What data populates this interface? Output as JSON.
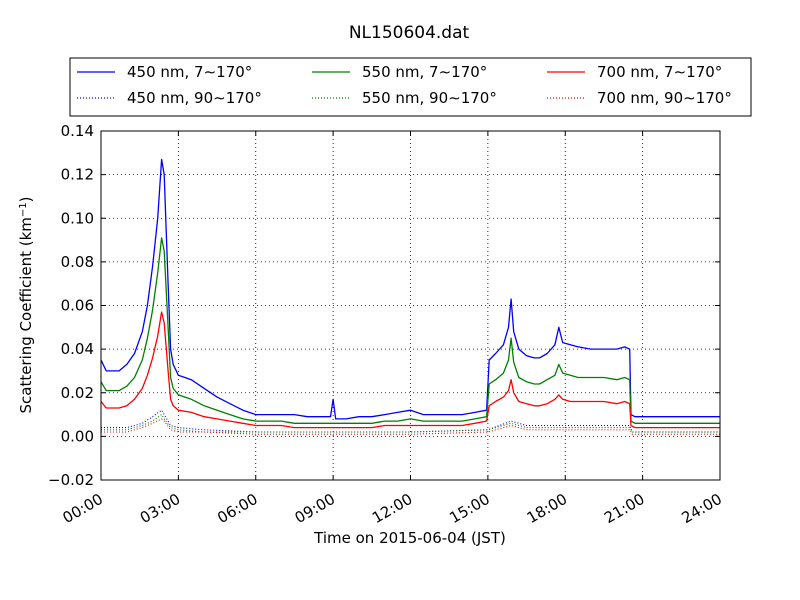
{
  "chart_data": {
    "type": "line",
    "title": "NL150604.dat",
    "xlabel": "Time on 2015-06-04 (JST)",
    "ylabel": "Scattering Coefficient (km",
    "ylabel_sup": "−1",
    "ylabel_close": ")",
    "xlim": [
      0,
      24
    ],
    "ylim": [
      -0.02,
      0.14
    ],
    "x_unit": "hours (JST)",
    "xticks": [
      0,
      3,
      6,
      9,
      12,
      15,
      18,
      21,
      24
    ],
    "xtick_labels": [
      "00:00",
      "03:00",
      "06:00",
      "09:00",
      "12:00",
      "15:00",
      "18:00",
      "21:00",
      "24:00"
    ],
    "yticks": [
      -0.02,
      0.0,
      0.02,
      0.04,
      0.06,
      0.08,
      0.1,
      0.12,
      0.14
    ],
    "ytick_labels": [
      "−0.02",
      "0.00",
      "0.02",
      "0.04",
      "0.06",
      "0.08",
      "0.10",
      "0.12",
      "0.14"
    ],
    "grid": true,
    "legend_position": "top (above plot, 3 columns)",
    "series": [
      {
        "name": "450 nm, 7∼170°",
        "color": "#0000ff",
        "style": "solid",
        "x": [
          0,
          0.2,
          0.7,
          1.0,
          1.3,
          1.6,
          1.8,
          2.0,
          2.2,
          2.35,
          2.45,
          2.6,
          2.7,
          2.8,
          3.0,
          3.5,
          4.0,
          4.5,
          5.0,
          5.5,
          6.0,
          6.5,
          7.0,
          7.5,
          8.0,
          8.5,
          8.9,
          9.0,
          9.1,
          9.5,
          10.0,
          10.5,
          11.0,
          11.5,
          12.0,
          12.5,
          13.0,
          13.5,
          14.0,
          14.5,
          14.95,
          15.05,
          15.3,
          15.6,
          15.8,
          15.9,
          16.0,
          16.2,
          16.5,
          16.8,
          17.0,
          17.3,
          17.6,
          17.75,
          17.9,
          18.2,
          18.5,
          19.0,
          19.5,
          20.0,
          20.3,
          20.5,
          20.55,
          20.7,
          21.0,
          21.5,
          22.0,
          22.5,
          23.0,
          23.5,
          24.0
        ],
        "y": [
          0.035,
          0.03,
          0.03,
          0.033,
          0.038,
          0.048,
          0.06,
          0.078,
          0.1,
          0.127,
          0.12,
          0.07,
          0.04,
          0.033,
          0.028,
          0.026,
          0.022,
          0.018,
          0.015,
          0.012,
          0.01,
          0.01,
          0.01,
          0.01,
          0.009,
          0.009,
          0.009,
          0.017,
          0.008,
          0.008,
          0.009,
          0.009,
          0.01,
          0.011,
          0.012,
          0.01,
          0.01,
          0.01,
          0.01,
          0.011,
          0.012,
          0.035,
          0.038,
          0.042,
          0.05,
          0.063,
          0.048,
          0.04,
          0.037,
          0.036,
          0.036,
          0.038,
          0.042,
          0.05,
          0.043,
          0.042,
          0.041,
          0.04,
          0.04,
          0.04,
          0.041,
          0.04,
          0.01,
          0.009,
          0.009,
          0.009,
          0.009,
          0.009,
          0.009,
          0.009,
          0.009
        ]
      },
      {
        "name": "550 nm, 7∼170°",
        "color": "#008000",
        "style": "solid",
        "x": [
          0,
          0.2,
          0.7,
          1.0,
          1.3,
          1.6,
          1.8,
          2.0,
          2.2,
          2.35,
          2.45,
          2.6,
          2.7,
          2.8,
          3.0,
          3.5,
          4.0,
          4.5,
          5.0,
          5.5,
          6.0,
          6.5,
          7.0,
          7.5,
          8.0,
          8.5,
          9.0,
          9.5,
          10.0,
          10.5,
          11.0,
          11.5,
          12.0,
          12.5,
          13.0,
          13.5,
          14.0,
          14.5,
          14.95,
          15.05,
          15.3,
          15.6,
          15.8,
          15.9,
          16.0,
          16.2,
          16.5,
          16.8,
          17.0,
          17.3,
          17.6,
          17.75,
          17.9,
          18.2,
          18.5,
          19.0,
          19.5,
          20.0,
          20.3,
          20.5,
          20.55,
          20.7,
          21.0,
          21.5,
          22.0,
          22.5,
          23.0,
          23.5,
          24.0
        ],
        "y": [
          0.025,
          0.021,
          0.021,
          0.023,
          0.027,
          0.035,
          0.045,
          0.058,
          0.075,
          0.091,
          0.085,
          0.05,
          0.027,
          0.022,
          0.019,
          0.017,
          0.014,
          0.012,
          0.01,
          0.008,
          0.007,
          0.007,
          0.007,
          0.006,
          0.006,
          0.006,
          0.006,
          0.006,
          0.006,
          0.006,
          0.007,
          0.007,
          0.008,
          0.007,
          0.007,
          0.007,
          0.007,
          0.008,
          0.009,
          0.024,
          0.026,
          0.029,
          0.035,
          0.045,
          0.034,
          0.027,
          0.025,
          0.024,
          0.024,
          0.026,
          0.028,
          0.033,
          0.029,
          0.028,
          0.027,
          0.027,
          0.027,
          0.026,
          0.027,
          0.026,
          0.007,
          0.006,
          0.006,
          0.006,
          0.006,
          0.006,
          0.006,
          0.006,
          0.006
        ]
      },
      {
        "name": "700 nm, 7∼170°",
        "color": "#ff0000",
        "style": "solid",
        "x": [
          0,
          0.2,
          0.7,
          1.0,
          1.3,
          1.6,
          1.8,
          2.0,
          2.2,
          2.35,
          2.45,
          2.6,
          2.7,
          2.8,
          3.0,
          3.5,
          4.0,
          4.5,
          5.0,
          5.5,
          6.0,
          6.5,
          7.0,
          7.5,
          8.0,
          8.5,
          9.0,
          9.5,
          10.0,
          10.5,
          11.0,
          11.5,
          12.0,
          12.5,
          13.0,
          13.5,
          14.0,
          14.5,
          14.95,
          15.05,
          15.3,
          15.6,
          15.8,
          15.9,
          16.0,
          16.2,
          16.5,
          16.8,
          17.0,
          17.3,
          17.6,
          17.75,
          17.9,
          18.2,
          18.5,
          19.0,
          19.5,
          20.0,
          20.3,
          20.5,
          20.55,
          20.7,
          21.0,
          21.5,
          22.0,
          22.5,
          23.0,
          23.5,
          24.0
        ],
        "y": [
          0.016,
          0.013,
          0.013,
          0.014,
          0.017,
          0.022,
          0.028,
          0.036,
          0.046,
          0.057,
          0.052,
          0.03,
          0.017,
          0.014,
          0.012,
          0.011,
          0.009,
          0.008,
          0.007,
          0.006,
          0.005,
          0.005,
          0.005,
          0.004,
          0.004,
          0.004,
          0.004,
          0.004,
          0.004,
          0.004,
          0.005,
          0.005,
          0.005,
          0.005,
          0.005,
          0.005,
          0.005,
          0.006,
          0.007,
          0.014,
          0.016,
          0.018,
          0.021,
          0.026,
          0.02,
          0.016,
          0.015,
          0.014,
          0.014,
          0.015,
          0.017,
          0.019,
          0.017,
          0.016,
          0.016,
          0.016,
          0.016,
          0.015,
          0.016,
          0.015,
          0.005,
          0.004,
          0.004,
          0.004,
          0.004,
          0.004,
          0.004,
          0.004,
          0.004
        ]
      },
      {
        "name": "450 nm, 90∼170°",
        "color": "#0000ff",
        "style": "dotted",
        "x": [
          0,
          1.0,
          1.6,
          2.0,
          2.35,
          2.45,
          2.7,
          3.0,
          4.0,
          6.0,
          9.0,
          12.0,
          15.0,
          15.9,
          16.5,
          18.0,
          20.5,
          20.6,
          22.0,
          24.0
        ],
        "y": [
          0.004,
          0.004,
          0.006,
          0.009,
          0.012,
          0.01,
          0.005,
          0.004,
          0.003,
          0.002,
          0.002,
          0.002,
          0.003,
          0.007,
          0.005,
          0.005,
          0.005,
          0.002,
          0.002,
          0.002
        ]
      },
      {
        "name": "550 nm, 90∼170°",
        "color": "#008000",
        "style": "dotted",
        "x": [
          0,
          1.0,
          1.6,
          2.0,
          2.35,
          2.45,
          2.7,
          3.0,
          4.0,
          6.0,
          9.0,
          12.0,
          15.0,
          15.9,
          16.5,
          18.0,
          20.5,
          20.6,
          22.0,
          24.0
        ],
        "y": [
          0.003,
          0.003,
          0.005,
          0.007,
          0.01,
          0.008,
          0.004,
          0.003,
          0.002,
          0.002,
          0.002,
          0.002,
          0.003,
          0.006,
          0.004,
          0.004,
          0.004,
          0.002,
          0.002,
          0.002
        ]
      },
      {
        "name": "700 nm, 90∼170°",
        "color": "#ff0000",
        "style": "dotted",
        "x": [
          0,
          1.0,
          1.6,
          2.0,
          2.35,
          2.45,
          2.7,
          3.0,
          4.0,
          6.0,
          9.0,
          12.0,
          15.0,
          15.9,
          16.5,
          18.0,
          20.5,
          20.6,
          22.0,
          24.0
        ],
        "y": [
          0.002,
          0.002,
          0.004,
          0.006,
          0.008,
          0.007,
          0.003,
          0.002,
          0.002,
          0.001,
          0.001,
          0.001,
          0.002,
          0.005,
          0.003,
          0.003,
          0.003,
          0.001,
          0.001,
          0.001
        ]
      }
    ]
  }
}
